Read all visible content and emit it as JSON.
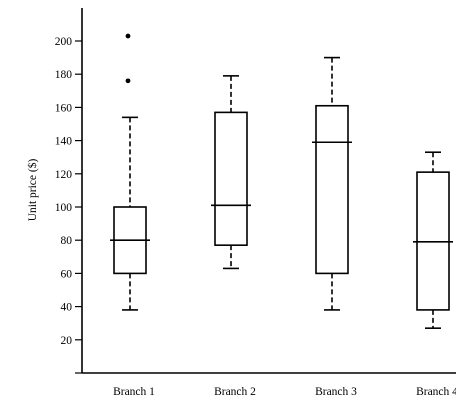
{
  "chart_data": {
    "type": "box",
    "title": "",
    "xlabel": "",
    "ylabel": "Unit price ($)",
    "ylim": [
      0,
      215
    ],
    "yticks": [
      20,
      40,
      60,
      80,
      100,
      120,
      140,
      160,
      180,
      200
    ],
    "grid": false,
    "categories": [
      "Branch 1",
      "Branch 2",
      "Branch 3",
      "Branch 4"
    ],
    "boxes": [
      {
        "category": "Branch 1",
        "whisker_low": 38,
        "q1": 60,
        "median": 80,
        "q3": 100,
        "whisker_high": 154,
        "outliers": [
          176,
          203
        ]
      },
      {
        "category": "Branch 2",
        "whisker_low": 63,
        "q1": 77,
        "median": 101,
        "q3": 157,
        "whisker_high": 179,
        "outliers": []
      },
      {
        "category": "Branch 3",
        "whisker_low": 38,
        "q1": 60,
        "median": 139,
        "q3": 161,
        "whisker_high": 190,
        "outliers": []
      },
      {
        "category": "Branch 4",
        "whisker_low": 27,
        "q1": 38,
        "median": 79,
        "q3": 121,
        "whisker_high": 133,
        "outliers": []
      }
    ]
  }
}
